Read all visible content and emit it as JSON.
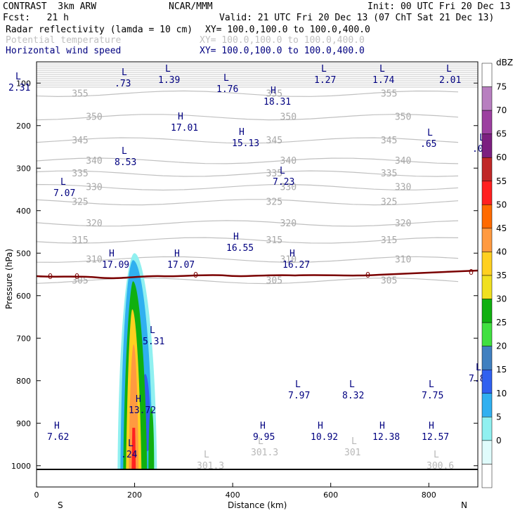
{
  "header": {
    "model": "CONTRAST  3km ARW",
    "org": "NCAR/MMM",
    "init": "Init: 00 UTC Fri 20 Dec 13",
    "fcst": "Fcst:   21 h",
    "valid": "Valid: 21 UTC Fri 20 Dec 13 (07 ChT Sat 21 Dec 13)"
  },
  "fields": [
    {
      "name": "Radar reflectivity (lamda = 10 cm)",
      "xy": "XY= 100.0,100.0 to 100.0,400.0",
      "color": "#000000"
    },
    {
      "name": "Potential temperature",
      "xy": "XY= 100.0,100.0 to 100.0,400.0",
      "color": "#c0c0c0"
    },
    {
      "name": "Horizontal wind speed",
      "xy": "XY= 100.0,100.0 to 100.0,400.0",
      "color": "#000080"
    }
  ],
  "colorbar": {
    "unit": "dBZ",
    "levels": [
      "75",
      "70",
      "65",
      "60",
      "55",
      "50",
      "45",
      "40",
      "35",
      "30",
      "25",
      "20",
      "15",
      "10",
      "5",
      "0"
    ],
    "colors": [
      "#ffffff",
      "#b87fc0",
      "#9c3fa0",
      "#7c1f80",
      "#c02828",
      "#ff2020",
      "#ff6a00",
      "#ff9a40",
      "#ffd020",
      "#f0e020",
      "#10b010",
      "#40e040",
      "#4080c0",
      "#3060f0",
      "#30b0f0",
      "#90f0f0",
      "#e0fcfc",
      "#ffffff"
    ]
  },
  "chart_data": {
    "type": "cross-section",
    "xlabel": "Distance (km)",
    "ylabel": "Pressure (hPa)",
    "xlim": [
      0,
      900
    ],
    "ylim": [
      1050,
      50
    ],
    "x_ticks": [
      "0",
      "200",
      "400",
      "600",
      "800"
    ],
    "y_ticks": [
      "100",
      "200",
      "300",
      "400",
      "500",
      "600",
      "700",
      "800",
      "900",
      "1000"
    ],
    "x_end_labels": {
      "left": "S",
      "right": "N"
    },
    "theta_contours": [
      {
        "value": 355,
        "p": 125
      },
      {
        "value": 350,
        "p": 180
      },
      {
        "value": 345,
        "p": 235
      },
      {
        "value": 340,
        "p": 283
      },
      {
        "value": 335,
        "p": 313
      },
      {
        "value": 330,
        "p": 345
      },
      {
        "value": 325,
        "p": 380
      },
      {
        "value": 320,
        "p": 430
      },
      {
        "value": 315,
        "p": 470
      },
      {
        "value": 310,
        "p": 515
      },
      {
        "value": 305,
        "p": 565
      }
    ],
    "zero_line_label": "0",
    "reflectivity_core_km": [
      175,
      230
    ],
    "wind_extrema": [
      {
        "label": "L",
        "value": "2.31",
        "x": 12,
        "y": 101
      },
      {
        "label": "L",
        "value": ".73",
        "x": 163,
        "y": 95
      },
      {
        "label": "L",
        "value": "1.39",
        "x": 225,
        "y": 90
      },
      {
        "label": "L",
        "value": "1.76",
        "x": 308,
        "y": 103
      },
      {
        "label": "L",
        "value": "1.27",
        "x": 447,
        "y": 90
      },
      {
        "label": "L",
        "value": "1.74",
        "x": 530,
        "y": 90
      },
      {
        "label": "L",
        "value": "2.01",
        "x": 625,
        "y": 90
      },
      {
        "label": "H",
        "value": "18.31",
        "x": 375,
        "y": 121
      },
      {
        "label": "H",
        "value": "17.01",
        "x": 243,
        "y": 158
      },
      {
        "label": "H",
        "value": "15.13",
        "x": 330,
        "y": 180
      },
      {
        "label": "L",
        "value": ".65",
        "x": 598,
        "y": 181
      },
      {
        "label": "L",
        "value": ".0",
        "x": 672,
        "y": 188
      },
      {
        "label": "L",
        "value": "8.53",
        "x": 163,
        "y": 207
      },
      {
        "label": "L",
        "value": "7.23",
        "x": 388,
        "y": 235
      },
      {
        "label": "L",
        "value": "7.07",
        "x": 76,
        "y": 251
      },
      {
        "label": "H",
        "value": "16.55",
        "x": 322,
        "y": 329
      },
      {
        "label": "H",
        "value": "17.09",
        "x": 145,
        "y": 353
      },
      {
        "label": "H",
        "value": "17.07",
        "x": 238,
        "y": 353
      },
      {
        "label": "H",
        "value": "16.27",
        "x": 402,
        "y": 353
      },
      {
        "label": "L",
        "value": "5.31",
        "x": 203,
        "y": 462
      },
      {
        "label": "L",
        "value": "7.97",
        "x": 410,
        "y": 539
      },
      {
        "label": "L",
        "value": "8.32",
        "x": 487,
        "y": 539
      },
      {
        "label": "L",
        "value": "7.75",
        "x": 600,
        "y": 539
      },
      {
        "label": "L",
        "value": "7.8",
        "x": 667,
        "y": 515
      },
      {
        "label": "H",
        "value": "13.72",
        "x": 183,
        "y": 560
      },
      {
        "label": "H",
        "value": "7.62",
        "x": 67,
        "y": 598
      },
      {
        "label": "H",
        "value": "9.95",
        "x": 360,
        "y": 598
      },
      {
        "label": "H",
        "value": "10.92",
        "x": 442,
        "y": 598
      },
      {
        "label": "H",
        "value": "12.38",
        "x": 530,
        "y": 598
      },
      {
        "label": "H",
        "value": "12.57",
        "x": 600,
        "y": 598
      },
      {
        "label": "L",
        "value": ".24",
        "x": 172,
        "y": 623
      }
    ],
    "theta_extrema": [
      {
        "label": "L",
        "value": "301.3",
        "x": 290,
        "y": 643
      },
      {
        "label": "L",
        "value": "301.3",
        "x": 367,
        "y": 624
      },
      {
        "label": "L",
        "value": "301",
        "x": 500,
        "y": 624
      },
      {
        "label": "L",
        "value": "300.6",
        "x": 617,
        "y": 643
      }
    ]
  }
}
